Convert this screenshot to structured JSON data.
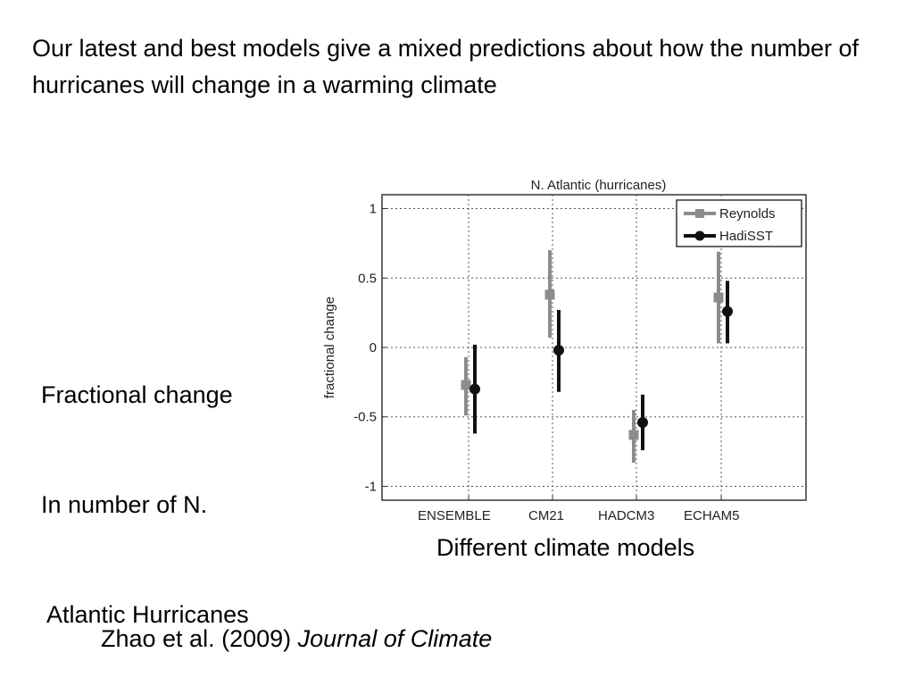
{
  "headline": "Our latest and best models give a mixed predictions about how the number of hurricanes will change in a warming climate",
  "side_label": {
    "line1": "Fractional change",
    "line2": "In number of N.",
    "line3": " Atlantic Hurricanes"
  },
  "x_caption": "Different climate models",
  "citation": {
    "authors": "Zhao et al. (2009) ",
    "journal": "Journal of Climate"
  },
  "colors": {
    "reynolds": "#8c8c8c",
    "hadisst": "#111111",
    "grid": "#555555"
  },
  "chart_data": {
    "type": "scatter",
    "title": "N. Atlantic (hurricanes)",
    "ylabel": "fractional change",
    "xlabel": "",
    "categories": [
      "ENSEMBLE",
      "CM21",
      "HADCM3",
      "ECHAM5"
    ],
    "ylim": [
      -1.1,
      1.1
    ],
    "yticks": [
      1,
      0.5,
      0,
      -0.5,
      -1
    ],
    "ytick_labels": [
      "1",
      "0.5",
      "0",
      "-0.5",
      "-1"
    ],
    "grid": true,
    "legend_position": "top-right",
    "series": [
      {
        "name": "Reynolds",
        "values": [
          -0.27,
          0.38,
          -0.63,
          0.36
        ],
        "lower": [
          -0.49,
          0.07,
          -0.83,
          0.03
        ],
        "upper": [
          -0.07,
          0.7,
          -0.45,
          0.69
        ]
      },
      {
        "name": "HadiSST",
        "values": [
          -0.3,
          -0.02,
          -0.54,
          0.26
        ],
        "lower": [
          -0.62,
          -0.32,
          -0.74,
          0.03
        ],
        "upper": [
          0.02,
          0.27,
          -0.34,
          0.48
        ]
      }
    ]
  }
}
